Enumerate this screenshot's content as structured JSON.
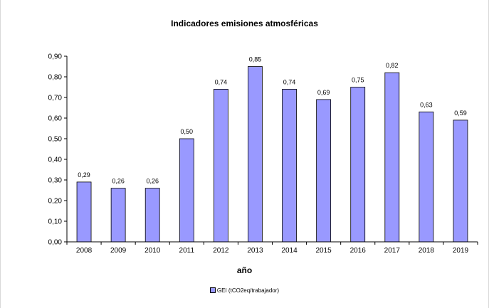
{
  "chart_data": {
    "type": "bar",
    "title": "Indicadores emisiones atmosféricas",
    "xlabel": "año",
    "ylabel": "",
    "categories": [
      "2008",
      "2009",
      "2010",
      "2011",
      "2012",
      "2013",
      "2014",
      "2015",
      "2016",
      "2017",
      "2018",
      "2019"
    ],
    "series": [
      {
        "name": "GEI (tCO2eq/trabajador)",
        "values": [
          0.29,
          0.26,
          0.26,
          0.5,
          0.74,
          0.85,
          0.74,
          0.69,
          0.75,
          0.82,
          0.63,
          0.59
        ],
        "labels": [
          "0,29",
          "0,26",
          "0,26",
          "0,50",
          "0,74",
          "0,85",
          "0,74",
          "0,69",
          "0,75",
          "0,82",
          "0,63",
          "0,59"
        ],
        "color": "#9999ff"
      }
    ],
    "ylim": [
      0,
      0.9
    ],
    "yticks": [
      0.0,
      0.1,
      0.2,
      0.3,
      0.4,
      0.5,
      0.6,
      0.7,
      0.8,
      0.9
    ],
    "ytick_labels": [
      "0,00",
      "0,10",
      "0,20",
      "0,30",
      "0,40",
      "0,50",
      "0,60",
      "0,70",
      "0,80",
      "0,90"
    ],
    "grid": false,
    "legend_position": "bottom"
  }
}
